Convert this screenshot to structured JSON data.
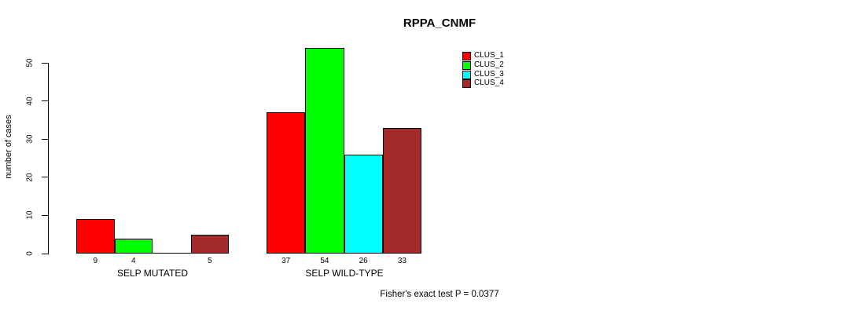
{
  "title": "RPPA_CNMF",
  "chart_data": {
    "type": "bar",
    "title": "RPPA_CNMF",
    "xlabel": "",
    "ylabel": "number of cases",
    "categories": [
      "SELP MUTATED",
      "SELP WILD-TYPE"
    ],
    "series": [
      {
        "name": "CLUS_1",
        "color": "#ff0000",
        "values": [
          9,
          37
        ]
      },
      {
        "name": "CLUS_2",
        "color": "#00ff00",
        "values": [
          4,
          54
        ]
      },
      {
        "name": "CLUS_3",
        "color": "#00ffff",
        "values": [
          0,
          26
        ]
      },
      {
        "name": "CLUS_4",
        "color": "#a52a2a",
        "values": [
          5,
          33
        ]
      }
    ],
    "bar_value_labels": [
      [
        "9",
        "4",
        "",
        "5"
      ],
      [
        "37",
        "54",
        "26",
        "33"
      ]
    ],
    "yticks": [
      "0",
      "10",
      "20",
      "30",
      "40",
      "50"
    ],
    "ylim": [
      0,
      54
    ],
    "grid": false,
    "legend_position": "top-right",
    "annotation": "Fisher's exact test P = 0.0377"
  },
  "legend": {
    "items": [
      {
        "label": "CLUS_1",
        "color": "#ff0000"
      },
      {
        "label": "CLUS_2",
        "color": "#00ff00"
      },
      {
        "label": "CLUS_3",
        "color": "#00ffff"
      },
      {
        "label": "CLUS_4",
        "color": "#a52a2a"
      }
    ]
  }
}
